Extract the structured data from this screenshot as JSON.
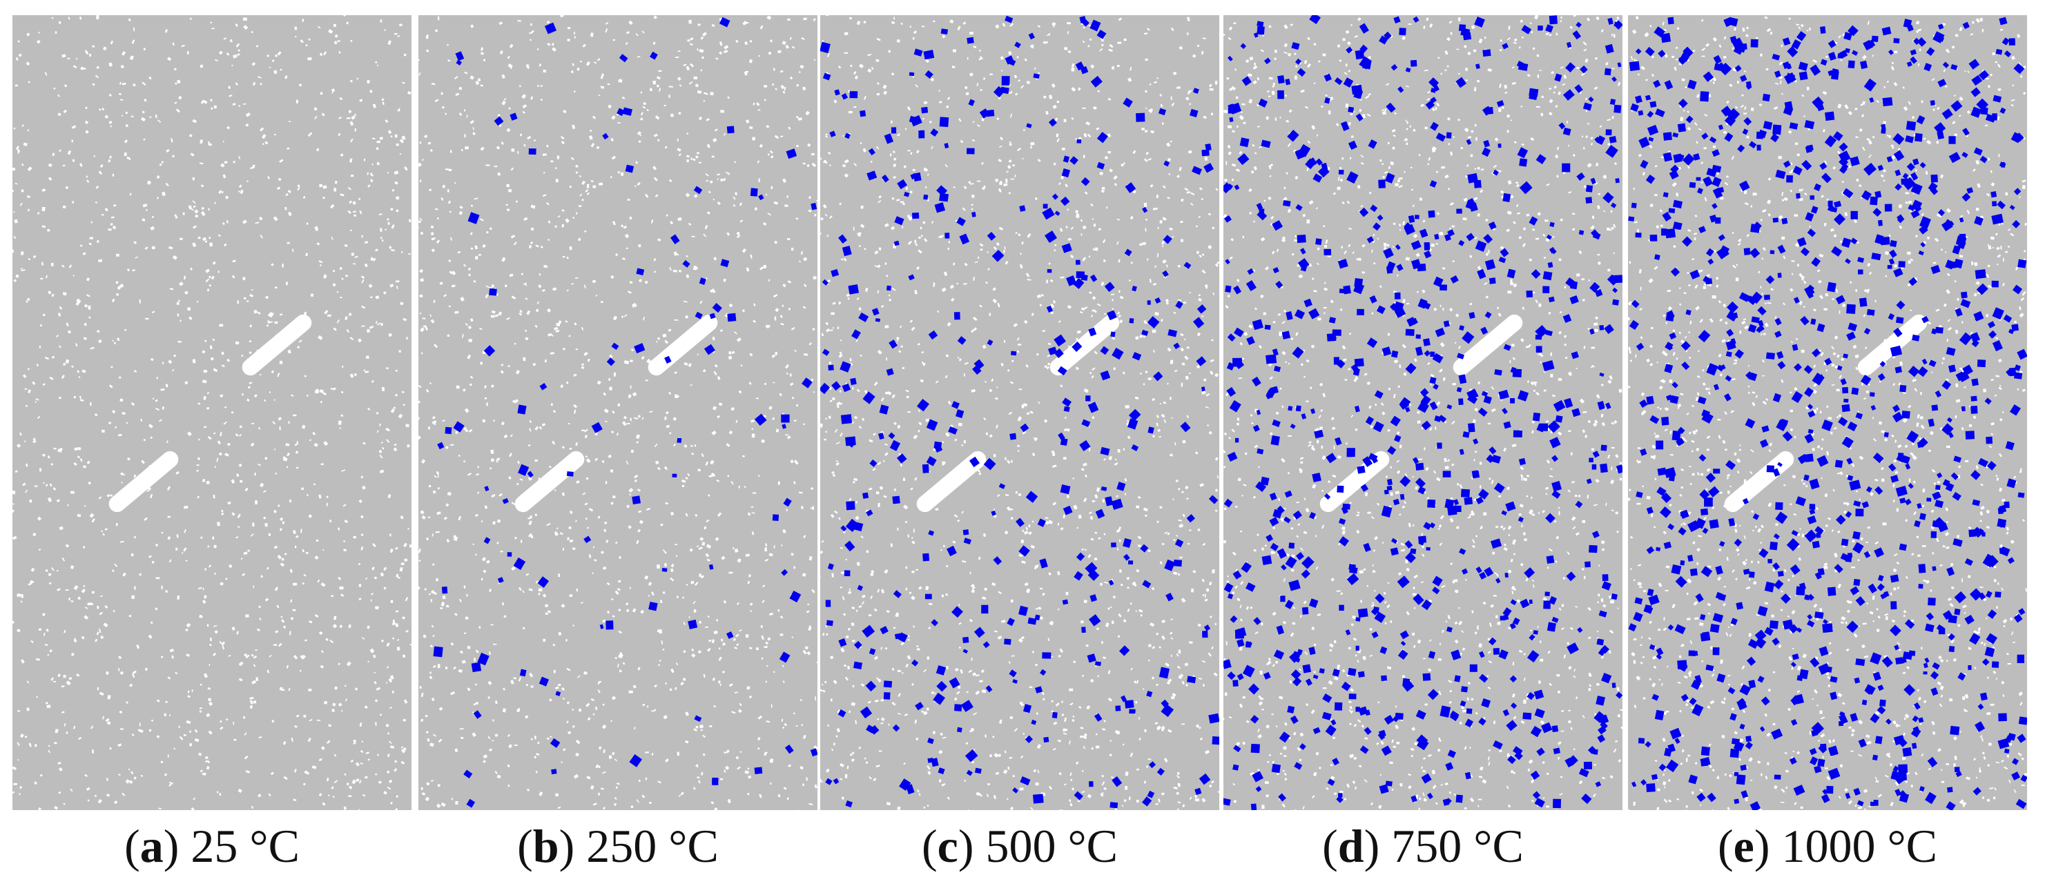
{
  "colors": {
    "background": "#ffffff",
    "matrix": "#bdbdbd",
    "pore": "#ffffff",
    "crack": "#0000ee",
    "flaw": "#ffffff"
  },
  "panels": [
    {
      "letter": "a",
      "label": "25 °C",
      "crack_density": 0
    },
    {
      "letter": "b",
      "label": "250 °C",
      "crack_density": 0.1
    },
    {
      "letter": "c",
      "label": "500 °C",
      "crack_density": 0.38
    },
    {
      "letter": "d",
      "label": "750 °C",
      "crack_density": 0.75
    },
    {
      "letter": "e",
      "label": "1000 °C",
      "crack_density": 1.0
    }
  ]
}
